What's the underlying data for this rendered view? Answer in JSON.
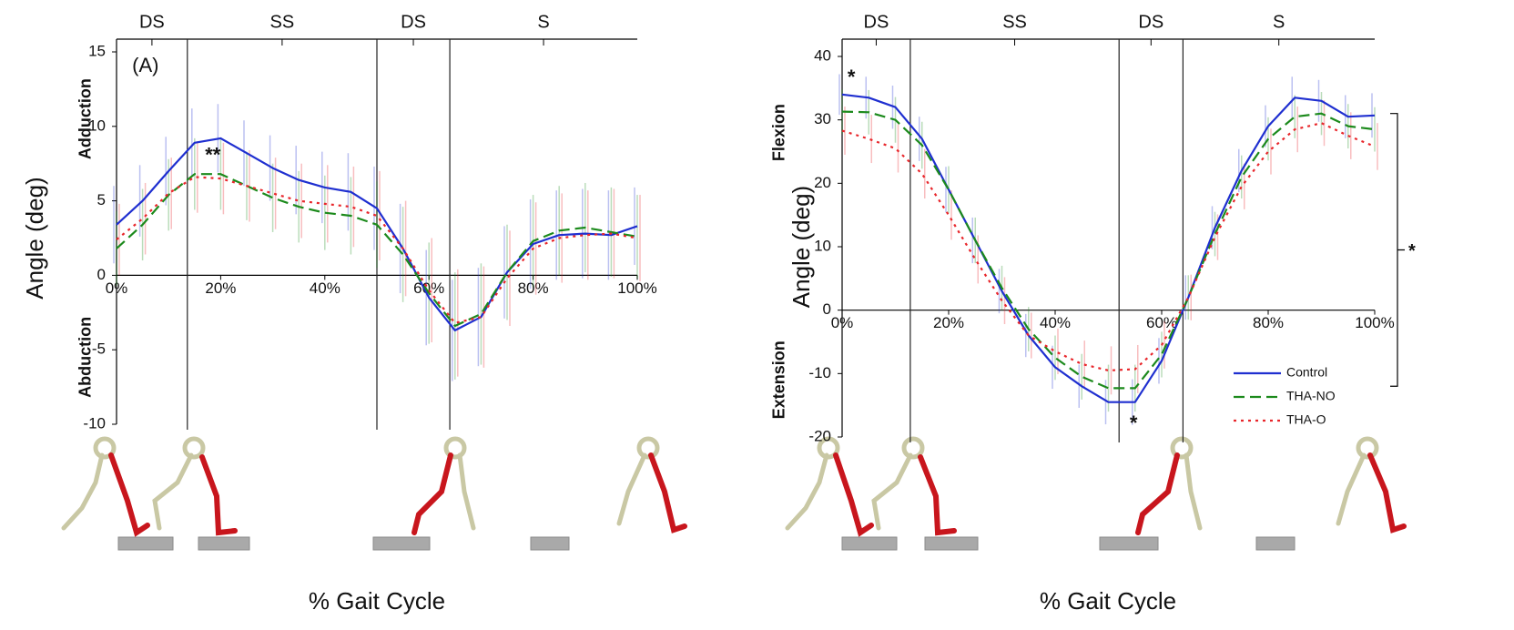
{
  "chart_data": [
    {
      "type": "line",
      "x_label": "% Gait Cycle",
      "y_label": "Angle (deg)",
      "side_labels": [
        "Adduction",
        "Abduction"
      ],
      "phases": [
        "DS",
        "SS",
        "DS",
        "S"
      ],
      "phase_lines": [
        13.6,
        50,
        64
      ],
      "x": [
        0,
        5,
        10,
        15,
        20,
        25,
        30,
        35,
        40,
        45,
        50,
        55,
        60,
        65,
        70,
        75,
        80,
        85,
        90,
        95,
        100
      ],
      "xlim": [
        0,
        100
      ],
      "ylim": [
        -10,
        15
      ],
      "xticks": [
        {
          "value": 0,
          "label": "0%"
        },
        {
          "value": 20,
          "label": "20%"
        },
        {
          "value": 40,
          "label": "40%"
        },
        {
          "value": 60,
          "label": "60%"
        },
        {
          "value": 80,
          "label": "80%"
        },
        {
          "value": 100,
          "label": "100%"
        }
      ],
      "yticks": [
        -10,
        -5,
        0,
        5,
        10,
        15
      ],
      "legend": false,
      "series": [
        {
          "color": "#1f2fd0",
          "style": "solid",
          "values": [
            3.4,
            5.0,
            7.0,
            8.9,
            9.2,
            8.2,
            7.2,
            6.4,
            5.9,
            5.6,
            4.5,
            1.8,
            -1.5,
            -3.7,
            -2.8,
            0.2,
            2.1,
            2.7,
            2.8,
            2.7,
            3.3
          ],
          "error": [
            2.6,
            2.4,
            2.3,
            2.3,
            2.3,
            2.2,
            2.2,
            2.3,
            2.4,
            2.6,
            2.8,
            3.0,
            3.2,
            3.4,
            3.3,
            3.1,
            3.0,
            3.0,
            3.0,
            3.0,
            2.6
          ]
        },
        {
          "color": "#1c8a1c",
          "style": "dashed",
          "values": [
            1.8,
            3.4,
            5.4,
            6.8,
            6.8,
            6.0,
            5.2,
            4.6,
            4.2,
            4.0,
            3.4,
            1.4,
            -1.2,
            -3.4,
            -2.6,
            0.2,
            2.3,
            3.0,
            3.2,
            2.9,
            2.6
          ],
          "error": [
            2.5,
            2.4,
            2.4,
            2.4,
            2.4,
            2.3,
            2.3,
            2.4,
            2.5,
            2.6,
            2.9,
            3.2,
            3.4,
            3.6,
            3.4,
            3.2,
            3.1,
            3.0,
            3.0,
            3.0,
            2.8
          ]
        },
        {
          "color": "#e8262b",
          "style": "dotted",
          "values": [
            2.4,
            3.8,
            5.5,
            6.6,
            6.5,
            6.0,
            5.5,
            5.0,
            4.8,
            4.6,
            4.0,
            1.8,
            -1.0,
            -3.2,
            -2.8,
            -0.2,
            1.8,
            2.5,
            2.7,
            2.8,
            2.5
          ],
          "error": [
            2.4,
            2.4,
            2.4,
            2.4,
            2.4,
            2.4,
            2.4,
            2.5,
            2.6,
            2.7,
            3.0,
            3.2,
            3.5,
            3.6,
            3.4,
            3.2,
            3.1,
            3.0,
            3.0,
            3.0,
            2.9
          ]
        }
      ],
      "annotations": [
        {
          "text": "(A)",
          "x": 3,
          "y": 14
        },
        {
          "text": "**",
          "x": 17,
          "y": 8
        }
      ]
    },
    {
      "type": "line",
      "x_label": "% Gait Cycle",
      "y_label": "Angle (deg)",
      "side_labels": [
        "Flexion",
        "Extension"
      ],
      "phases": [
        "DS",
        "SS",
        "DS",
        "S"
      ],
      "phase_lines": [
        12.8,
        52,
        64
      ],
      "x": [
        0,
        5,
        10,
        15,
        20,
        25,
        30,
        35,
        40,
        45,
        50,
        55,
        60,
        65,
        70,
        75,
        80,
        85,
        90,
        95,
        100
      ],
      "xlim": [
        0,
        100
      ],
      "ylim": [
        -20,
        40
      ],
      "xticks": [
        {
          "value": 0,
          "label": "0%"
        },
        {
          "value": 20,
          "label": "20%"
        },
        {
          "value": 40,
          "label": "40%"
        },
        {
          "value": 60,
          "label": "60%"
        },
        {
          "value": 80,
          "label": "80%"
        },
        {
          "value": 100,
          "label": "100%"
        }
      ],
      "yticks": [
        -20,
        -10,
        0,
        10,
        20,
        30,
        40
      ],
      "legend": "lower right",
      "series": [
        {
          "name": "Control",
          "color": "#1f2fd0",
          "style": "solid",
          "values": [
            34,
            33.5,
            32,
            27,
            19,
            11,
            3,
            -4,
            -9,
            -12,
            -14.5,
            -14.5,
            -8,
            2,
            13,
            22,
            29,
            33.5,
            33,
            30.5,
            30.7
          ],
          "error": [
            3.2,
            3.3,
            3.4,
            3.5,
            3.6,
            3.6,
            3.5,
            3.4,
            3.4,
            3.4,
            3.5,
            3.6,
            3.6,
            3.5,
            3.4,
            3.4,
            3.3,
            3.3,
            3.3,
            3.4,
            3.5
          ]
        },
        {
          "name": "THA-NO",
          "color": "#1c8a1c",
          "style": "dashed",
          "values": [
            31.3,
            31.2,
            30,
            26,
            19,
            11,
            3.5,
            -3,
            -7.5,
            -10.5,
            -12.3,
            -12.3,
            -7,
            2,
            12,
            21,
            27,
            30.5,
            31,
            29,
            28.5
          ],
          "error": [
            3.5,
            3.5,
            3.6,
            3.7,
            3.7,
            3.6,
            3.5,
            3.5,
            3.5,
            3.6,
            3.7,
            3.7,
            3.6,
            3.5,
            3.5,
            3.4,
            3.4,
            3.4,
            3.4,
            3.5,
            3.5
          ]
        },
        {
          "name": "THA-O",
          "color": "#e8262b",
          "style": "dotted",
          "values": [
            28.3,
            27,
            25.5,
            21.5,
            15,
            8,
            1.5,
            -4,
            -6.5,
            -8.5,
            -9.5,
            -9.3,
            -5.5,
            2,
            11.5,
            19.5,
            25,
            28.5,
            29.5,
            27.5,
            25.8
          ],
          "error": [
            3.8,
            3.8,
            3.8,
            3.9,
            3.9,
            3.8,
            3.7,
            3.6,
            3.6,
            3.7,
            3.8,
            3.8,
            3.7,
            3.6,
            3.6,
            3.6,
            3.6,
            3.6,
            3.6,
            3.7,
            3.7
          ]
        }
      ],
      "annotations": [
        {
          "text": "*",
          "x": 1,
          "y": 36.5
        },
        {
          "text": "*",
          "x": 54,
          "y": -18
        }
      ],
      "bracket": {
        "text": "*",
        "ylim": [
          31,
          -12
        ]
      }
    }
  ]
}
